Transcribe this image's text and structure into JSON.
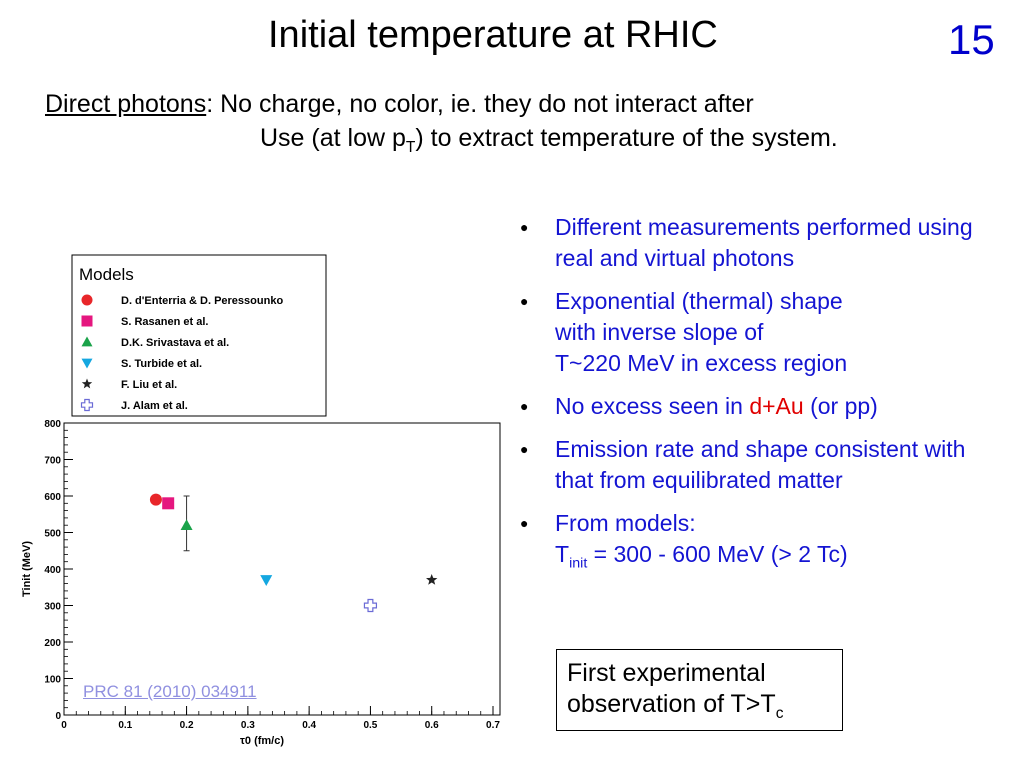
{
  "slide": {
    "title": "Initial temperature at RHIC",
    "number": "15",
    "intro_lead": "Direct photons",
    "intro_line1_rest": ": No charge, no color, ie. they do not interact after",
    "intro_line2_a": "Use (at low p",
    "intro_line2_sub": "T",
    "intro_line2_b": ") to extract temperature of the system."
  },
  "bullets": [
    {
      "text": "Different measurements performed using real and virtual photons"
    },
    {
      "lines": [
        "Exponential (thermal) shape",
        "with inverse slope of",
        "T~220 MeV in excess region"
      ]
    },
    {
      "a": "No excess seen in ",
      "highlight": "d+Au",
      "b": " (or pp)"
    },
    {
      "text": "Emission rate and shape consistent with that from equilibrated matter"
    },
    {
      "line1": "From models:",
      "t": "T",
      "sub": "init",
      "rest": " = 300 - 600 MeV (> 2 Tc)"
    }
  ],
  "conclusion": {
    "line1": "First experimental",
    "line2": "observation of T>T",
    "sub": "c"
  },
  "reference": "PRC 81 (2010) 034911",
  "chart_data": {
    "type": "scatter",
    "xlabel": "τ0 (fm/c)",
    "ylabel": "Tinit (MeV)",
    "xlim": [
      0,
      0.7
    ],
    "ylim": [
      0,
      800
    ],
    "x_ticks": [
      "0",
      "0.1",
      "0.2",
      "0.3",
      "0.4",
      "0.5",
      "0.6",
      "0.7"
    ],
    "y_ticks": [
      "0",
      "100",
      "200",
      "300",
      "400",
      "500",
      "600",
      "700",
      "800"
    ],
    "legend_title": "Models",
    "legend_position": "above plot, left",
    "series": [
      {
        "name": "D. d'Enterria & D. Peressounko",
        "marker": "circle",
        "color": "#e8262a",
        "x": 0.15,
        "y": 590
      },
      {
        "name": "S. Rasanen et al.",
        "marker": "square",
        "color": "#e5177f",
        "x": 0.17,
        "y": 580
      },
      {
        "name": "D.K. Srivastava et al.",
        "marker": "triangle-up",
        "color": "#1aa34a",
        "x": 0.2,
        "y": 520,
        "error": [
          450,
          600
        ]
      },
      {
        "name": "S. Turbide et al.",
        "marker": "triangle-down",
        "color": "#14a7e0",
        "x": 0.33,
        "y": 370
      },
      {
        "name": "F. Liu et al.",
        "marker": "star",
        "color": "#222222",
        "x": 0.6,
        "y": 370
      },
      {
        "name": "J. Alam et al.",
        "marker": "open-cross",
        "color": "#6b6bd6",
        "x": 0.5,
        "y": 300
      }
    ]
  }
}
